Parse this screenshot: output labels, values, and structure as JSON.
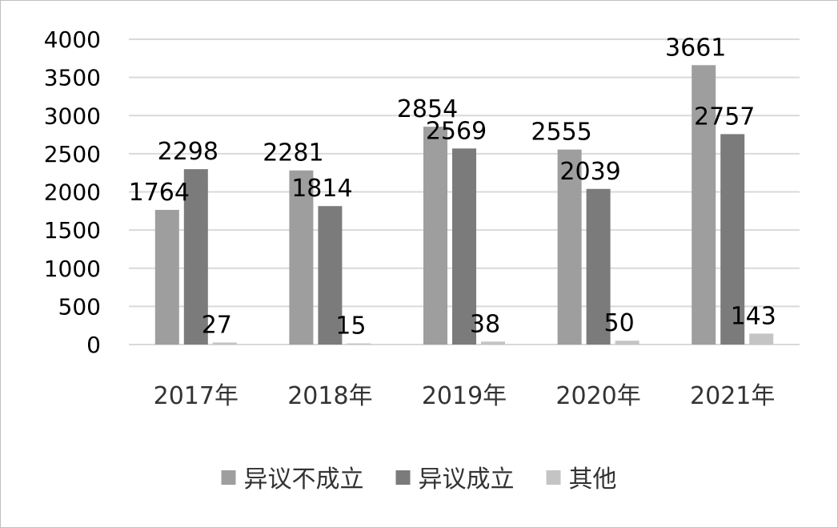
{
  "chart_data": {
    "type": "bar",
    "categories": [
      "2017年",
      "2018年",
      "2019年",
      "2020年",
      "2021年"
    ],
    "series": [
      {
        "name": "异议不成立",
        "values": [
          1764,
          2281,
          2854,
          2555,
          3661
        ],
        "color": "#9e9e9e"
      },
      {
        "name": "异议成立",
        "values": [
          2298,
          1814,
          2569,
          2039,
          2757
        ],
        "color": "#7b7b7b"
      },
      {
        "name": "其他",
        "values": [
          27,
          15,
          38,
          50,
          143
        ],
        "color": "#c4c4c4"
      }
    ],
    "ylim": [
      0,
      4000
    ],
    "yticks": [
      0,
      500,
      1000,
      1500,
      2000,
      2500,
      3000,
      3500,
      4000
    ],
    "grid": true,
    "legend": "bottom",
    "data_labels": true,
    "gridline_color": "#d9d9d9"
  }
}
